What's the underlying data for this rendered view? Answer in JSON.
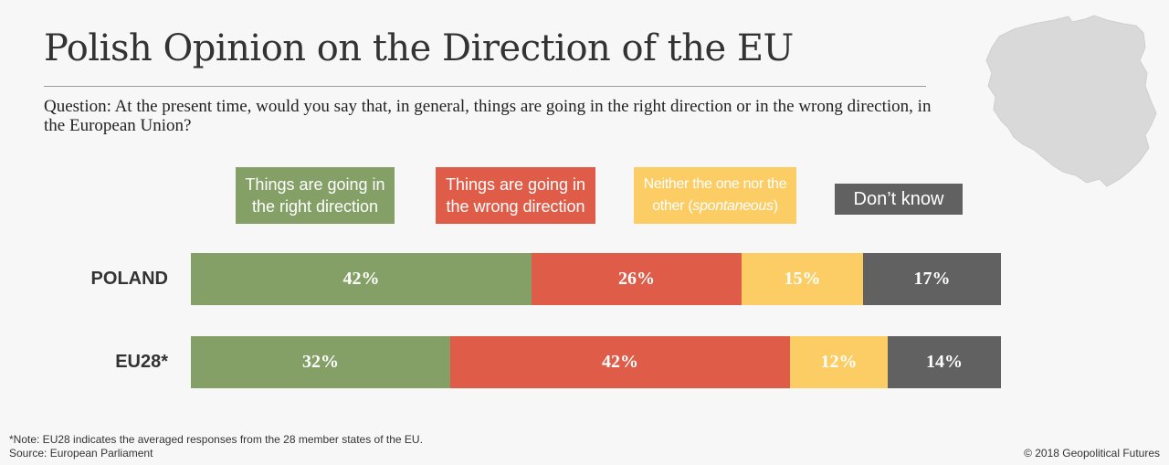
{
  "title": "Polish Opinion on the Direction of the EU",
  "question": "Question: At the present time, would you say that, in general, things are going in the right direction or in the wrong direction, in the European Union?",
  "colors": {
    "right": "#84a066",
    "wrong": "#de5c48",
    "neither": "#fdcd65",
    "dont_know": "#616161"
  },
  "legend": [
    {
      "key": "right",
      "line1": "Things are going in",
      "line2": "the right direction"
    },
    {
      "key": "wrong",
      "line1": "Things are going in",
      "line2": "the wrong direction"
    },
    {
      "key": "neither",
      "line1": "Neither the one nor the",
      "line2_pre": "other (",
      "line2_em": "spontaneous",
      "line2_post": ")"
    },
    {
      "key": "dont_know",
      "line1": "Don’t know"
    }
  ],
  "chart_data": {
    "type": "bar",
    "orientation": "horizontal",
    "stacked": true,
    "title": "Polish Opinion on the Direction of the EU",
    "categories": [
      "POLAND",
      "EU28*"
    ],
    "series": [
      {
        "name": "Things are going in the right direction",
        "key": "right",
        "values": [
          42,
          32
        ],
        "labels": [
          "42%",
          "32%"
        ]
      },
      {
        "name": "Things are going in the wrong direction",
        "key": "wrong",
        "values": [
          26,
          42
        ],
        "labels": [
          "26%",
          "42%"
        ]
      },
      {
        "name": "Neither the one nor the other (spontaneous)",
        "key": "neither",
        "values": [
          15,
          12
        ],
        "labels": [
          "15%",
          "12%"
        ]
      },
      {
        "name": "Don’t know",
        "key": "dont_know",
        "values": [
          17,
          14
        ],
        "labels": [
          "17%",
          "14%"
        ]
      }
    ],
    "xlim": [
      0,
      100
    ],
    "unit": "%"
  },
  "footer": {
    "note": "*Note: EU28 indicates the averaged responses from the 28 member states of the EU.",
    "source": "Source: European Parliament",
    "copyright": "© 2018 Geopolitical Futures"
  },
  "map_icon": "poland-map-icon"
}
